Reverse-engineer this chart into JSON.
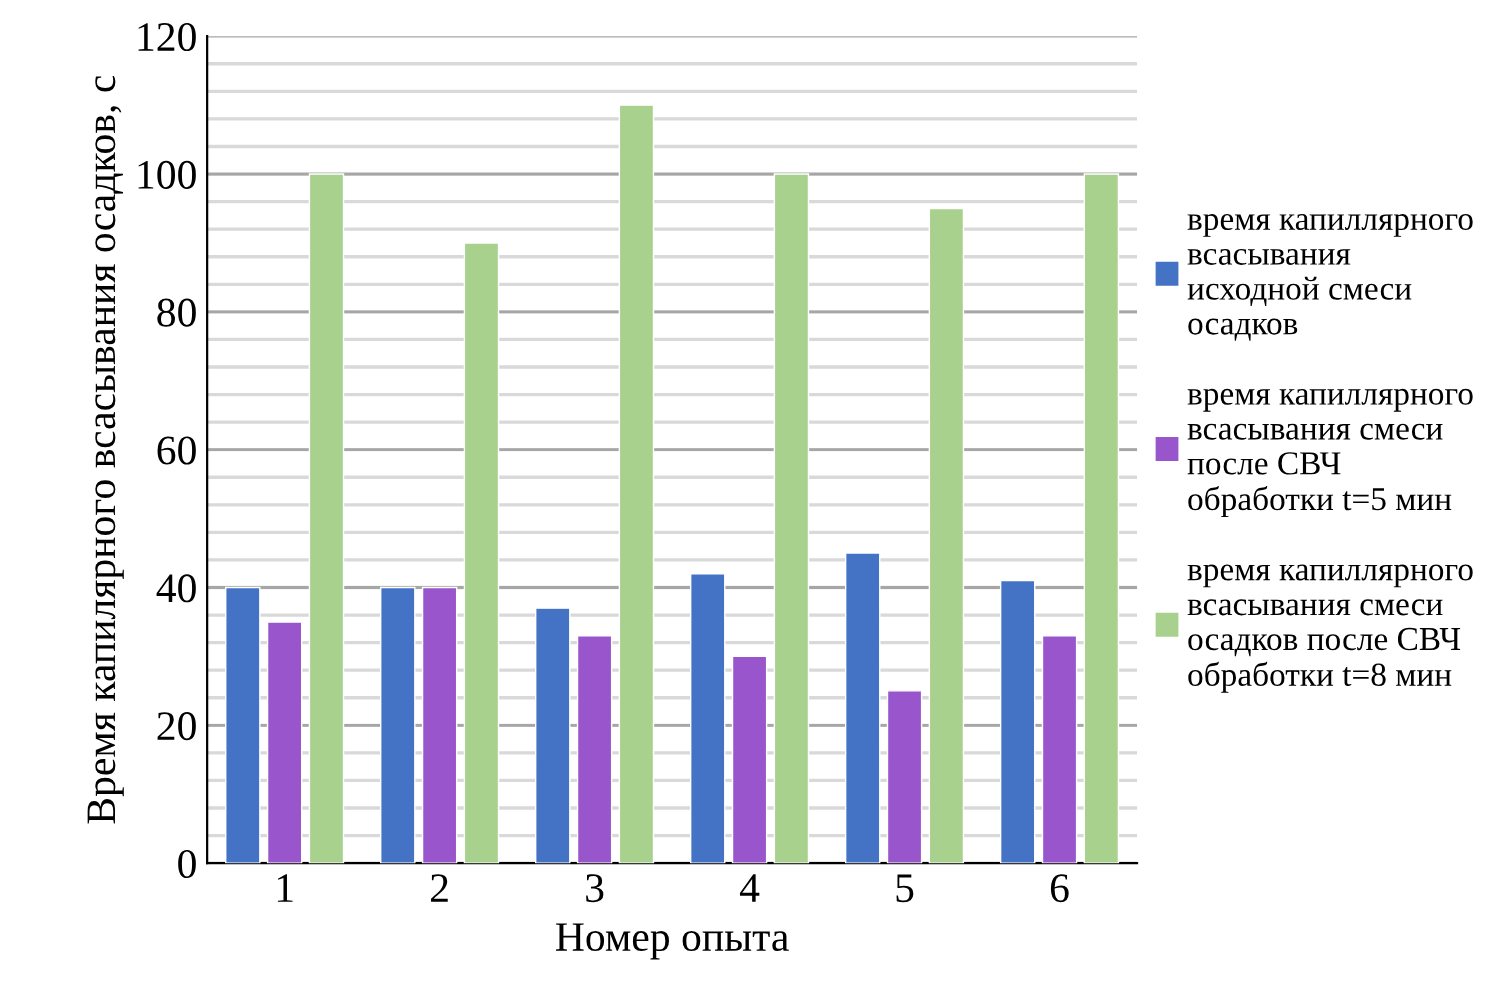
{
  "chart_data": {
    "type": "bar",
    "xlabel": "Номер опыта",
    "ylabel": "Время капилярного всасывания осадков, с",
    "categories": [
      "1",
      "2",
      "3",
      "4",
      "5",
      "6"
    ],
    "series": [
      {
        "name": "время капиллярного всасывания исходной смеси осадков",
        "color": "#4472c4",
        "values": [
          40,
          40,
          37,
          42,
          45,
          41
        ]
      },
      {
        "name": "время капиллярного всасывания смеси после СВЧ обработки t=5 мин",
        "color": "#9955cc",
        "values": [
          35,
          40,
          33,
          30,
          25,
          33
        ]
      },
      {
        "name": "время капиллярного всасывания смеси осадков после СВЧ обработки t=8 мин",
        "color": "#a9d18e",
        "values": [
          100,
          90,
          110,
          100,
          95,
          100
        ]
      }
    ],
    "ylim": [
      0,
      120
    ],
    "yticks": [
      0,
      20,
      40,
      60,
      80,
      100,
      120
    ],
    "grid": "y",
    "legend": "right"
  }
}
